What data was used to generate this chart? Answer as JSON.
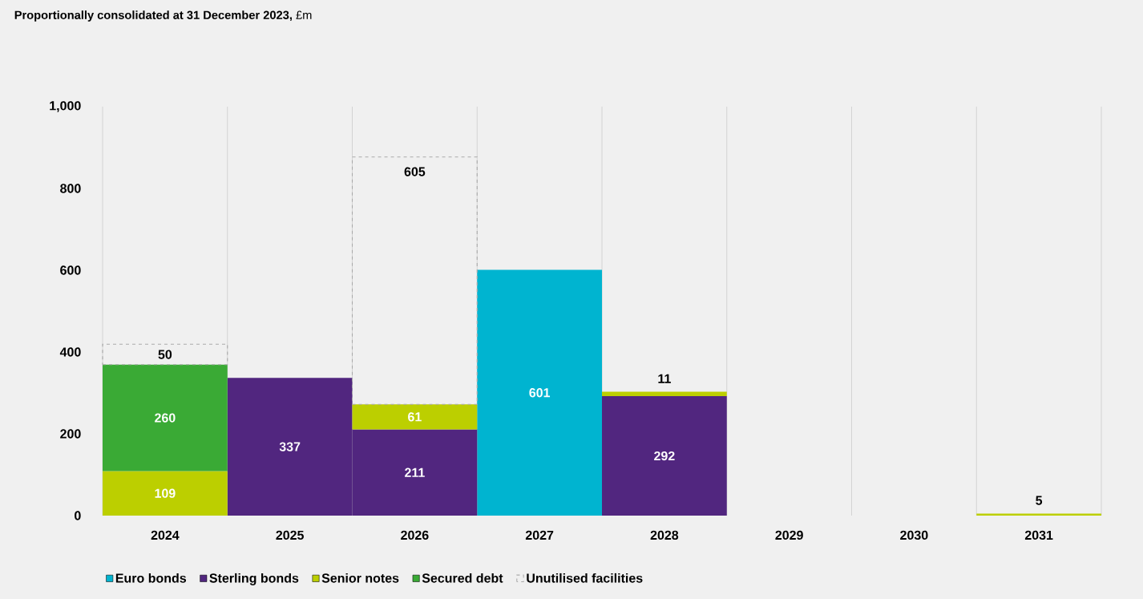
{
  "chart_data": {
    "type": "bar",
    "title": "**Proportionally consolidated at 31 December 2023,** £m",
    "categories": [
      "2024",
      "2025",
      "2026",
      "2027",
      "2028",
      "2029",
      "2030",
      "2031"
    ],
    "stacked": true,
    "series": [
      {
        "name": "Euro bonds",
        "color": "#00b4d0",
        "values": [
          null,
          null,
          null,
          601,
          null,
          null,
          null,
          null
        ]
      },
      {
        "name": "Sterling bonds",
        "color": "#51267f",
        "values": [
          null,
          337,
          211,
          null,
          292,
          null,
          null,
          null
        ]
      },
      {
        "name": "Senior notes",
        "color": "#bccf00",
        "values": [
          109,
          null,
          61,
          null,
          11,
          null,
          null,
          5
        ]
      },
      {
        "name": "Secured debt",
        "color": "#3aaa35",
        "values": [
          260,
          null,
          null,
          null,
          null,
          null,
          null,
          null
        ]
      },
      {
        "name": "Unutilised facilities",
        "color": "#aaaaaa",
        "line_style": "dashed",
        "values": [
          50,
          null,
          605,
          null,
          null,
          null,
          null,
          null
        ]
      }
    ],
    "ylim": [
      0,
      1000
    ],
    "yticks": [
      0,
      200,
      400,
      600,
      800,
      {
        "value": 1000,
        "label": "1,000"
      }
    ],
    "grid": "x",
    "legend": "bottom",
    "data_labels": true
  }
}
